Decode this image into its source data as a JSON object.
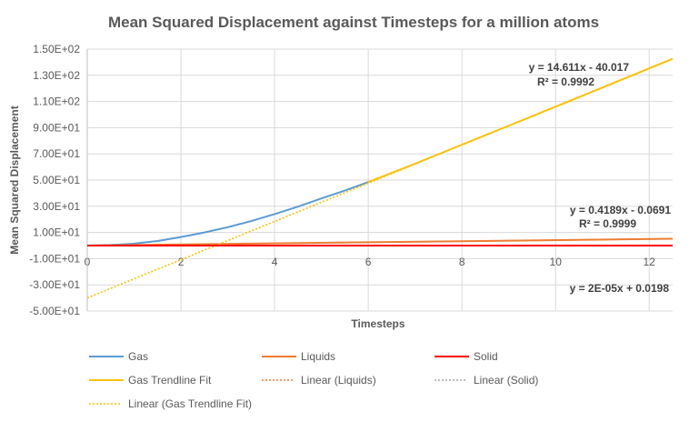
{
  "chart_data": {
    "type": "line",
    "title": "Mean Squared Displacement against Timesteps for a million atoms",
    "xlabel": "Timesteps",
    "ylabel": "Mean Squared Displacement",
    "xlim": [
      0,
      12.5
    ],
    "ylim": [
      -50,
      150
    ],
    "xticks": [
      "0",
      "2",
      "4",
      "6",
      "8",
      "10",
      "12"
    ],
    "xtick_values": [
      0,
      2,
      4,
      6,
      8,
      10,
      12
    ],
    "yticks": [
      "1.50E+02",
      "1.30E+02",
      "1.10E+02",
      "9.00E+01",
      "7.00E+01",
      "5.00E+01",
      "3.00E+01",
      "1.00E+01",
      "-1.00E+01",
      "-3.00E+01",
      "-5.00E+01"
    ],
    "ytick_values": [
      150,
      130,
      110,
      90,
      70,
      50,
      30,
      10,
      -10,
      -30,
      -50
    ],
    "grid": true,
    "legend_position": "bottom",
    "series": [
      {
        "name": "Gas",
        "color": "#5B9BD5",
        "style": "solid",
        "x": [
          0,
          0.5,
          1,
          1.5,
          2,
          2.5,
          3,
          3.5,
          4,
          4.5,
          5,
          5.5,
          6
        ],
        "y": [
          0,
          0.4,
          1.5,
          3.5,
          6.5,
          10,
          14,
          18.7,
          24,
          29.7,
          36,
          42,
          48.5
        ]
      },
      {
        "name": "Liquids",
        "color": "#ED7D31",
        "style": "solid",
        "x": [
          0,
          12.5
        ],
        "y": [
          0,
          5.2
        ]
      },
      {
        "name": "Solid",
        "color": "#FF0000",
        "style": "solid",
        "x": [
          0,
          12.5
        ],
        "y": [
          0,
          0.02
        ]
      },
      {
        "name": "Gas Trendline Fit",
        "color": "#FFC000",
        "style": "solid",
        "x": [
          6,
          7,
          8,
          9,
          10,
          11,
          12,
          12.5
        ],
        "y": [
          48.5,
          62.5,
          77,
          91.5,
          106,
          120.6,
          135.3,
          142.6
        ]
      },
      {
        "name": "Linear (Liquids)",
        "color": "#ED7D31",
        "style": "dotted",
        "x": [
          0,
          12.5
        ],
        "y": [
          -0.0691,
          5.167
        ]
      },
      {
        "name": "Linear (Solid)",
        "color": "#A5A5A5",
        "style": "dotted",
        "x": [
          0,
          12.5
        ],
        "y": [
          0.0198,
          0.02
        ]
      },
      {
        "name": "Linear (Gas Trendline Fit)",
        "color": "#FFC000",
        "style": "dotted",
        "x": [
          0,
          12.5
        ],
        "y": [
          -40.017,
          142.62
        ]
      }
    ],
    "annotations": [
      {
        "eq": "y = 14.611x - 40.017",
        "r2": "R² = 0.9992"
      },
      {
        "eq": "y = 0.4189x - 0.0691",
        "r2": "R² = 0.9999"
      },
      {
        "eq": "y = 2E-05x + 0.0198"
      }
    ]
  }
}
